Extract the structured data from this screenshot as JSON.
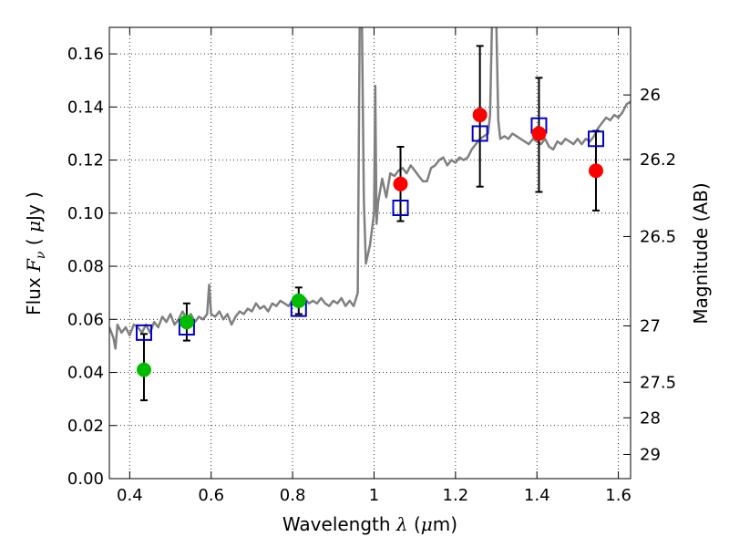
{
  "chart_data": {
    "type": "scatter",
    "title": "",
    "xlabel": "Wavelength  λ (μm)",
    "ylabel": "Flux  F_ν  ( μJy )",
    "ylabel_right": "Magnitude (AB)",
    "xlim": [
      0.35,
      1.63
    ],
    "ylim": [
      0.0,
      0.17
    ],
    "grid": true,
    "x_ticks": [
      0.4,
      0.6,
      0.8,
      1.0,
      1.2,
      1.4,
      1.6
    ],
    "x_tick_labels": [
      "0.4",
      "0.6",
      "0.8",
      "1",
      "1.2",
      "1.4",
      "1.6"
    ],
    "y_ticks": [
      0.0,
      0.02,
      0.04,
      0.06,
      0.08,
      0.1,
      0.12,
      0.14,
      0.16
    ],
    "y_tick_labels": [
      "0.00",
      "0.02",
      "0.04",
      "0.06",
      "0.08",
      "0.10",
      "0.12",
      "0.14",
      "0.16"
    ],
    "mag_ticks": [
      26,
      26.2,
      26.5,
      27,
      27.5,
      28,
      29
    ],
    "mag_tick_labels": [
      "26",
      "26.2",
      "26.5",
      "27",
      "27.5",
      "28",
      "29"
    ],
    "series": [
      {
        "kind": "line",
        "color": "#808080",
        "points": [
          [
            0.35,
            0.057
          ],
          [
            0.36,
            0.053
          ],
          [
            0.365,
            0.049
          ],
          [
            0.37,
            0.058
          ],
          [
            0.38,
            0.055
          ],
          [
            0.39,
            0.057
          ],
          [
            0.4,
            0.054
          ],
          [
            0.41,
            0.058
          ],
          [
            0.42,
            0.057
          ],
          [
            0.43,
            0.055
          ],
          [
            0.44,
            0.058
          ],
          [
            0.45,
            0.055
          ],
          [
            0.46,
            0.059
          ],
          [
            0.47,
            0.057
          ],
          [
            0.48,
            0.061
          ],
          [
            0.49,
            0.059
          ],
          [
            0.5,
            0.062
          ],
          [
            0.51,
            0.058
          ],
          [
            0.52,
            0.06
          ],
          [
            0.53,
            0.063
          ],
          [
            0.54,
            0.06
          ],
          [
            0.55,
            0.062
          ],
          [
            0.56,
            0.059
          ],
          [
            0.57,
            0.061
          ],
          [
            0.58,
            0.06
          ],
          [
            0.59,
            0.062
          ],
          [
            0.595,
            0.073
          ],
          [
            0.6,
            0.062
          ],
          [
            0.61,
            0.061
          ],
          [
            0.62,
            0.063
          ],
          [
            0.63,
            0.06
          ],
          [
            0.64,
            0.062
          ],
          [
            0.65,
            0.058
          ],
          [
            0.66,
            0.061
          ],
          [
            0.67,
            0.063
          ],
          [
            0.68,
            0.062
          ],
          [
            0.69,
            0.064
          ],
          [
            0.7,
            0.063
          ],
          [
            0.71,
            0.066
          ],
          [
            0.72,
            0.064
          ],
          [
            0.73,
            0.065
          ],
          [
            0.74,
            0.063
          ],
          [
            0.75,
            0.066
          ],
          [
            0.76,
            0.065
          ],
          [
            0.77,
            0.067
          ],
          [
            0.78,
            0.066
          ],
          [
            0.79,
            0.065
          ],
          [
            0.8,
            0.067
          ],
          [
            0.81,
            0.066
          ],
          [
            0.82,
            0.068
          ],
          [
            0.83,
            0.068
          ],
          [
            0.84,
            0.066
          ],
          [
            0.85,
            0.067
          ],
          [
            0.86,
            0.066
          ],
          [
            0.87,
            0.068
          ],
          [
            0.88,
            0.066
          ],
          [
            0.89,
            0.065
          ],
          [
            0.9,
            0.067
          ],
          [
            0.91,
            0.066
          ],
          [
            0.92,
            0.068
          ],
          [
            0.93,
            0.065
          ],
          [
            0.94,
            0.067
          ],
          [
            0.95,
            0.065
          ],
          [
            0.96,
            0.07
          ],
          [
            0.965,
            0.175
          ],
          [
            0.97,
            0.175
          ],
          [
            0.975,
            0.105
          ],
          [
            0.98,
            0.081
          ],
          [
            0.99,
            0.088
          ],
          [
            1.0,
            0.1
          ],
          [
            1.003,
            0.148
          ],
          [
            1.006,
            0.096
          ],
          [
            1.01,
            0.104
          ],
          [
            1.02,
            0.113
          ],
          [
            1.03,
            0.106
          ],
          [
            1.04,
            0.115
          ],
          [
            1.05,
            0.114
          ],
          [
            1.06,
            0.116
          ],
          [
            1.07,
            0.117
          ],
          [
            1.08,
            0.115
          ],
          [
            1.09,
            0.118
          ],
          [
            1.1,
            0.116
          ],
          [
            1.11,
            0.114
          ],
          [
            1.12,
            0.112
          ],
          [
            1.13,
            0.112
          ],
          [
            1.14,
            0.117
          ],
          [
            1.15,
            0.118
          ],
          [
            1.16,
            0.12
          ],
          [
            1.17,
            0.121
          ],
          [
            1.18,
            0.118
          ],
          [
            1.19,
            0.12
          ],
          [
            1.2,
            0.119
          ],
          [
            1.21,
            0.121
          ],
          [
            1.22,
            0.12
          ],
          [
            1.23,
            0.121
          ],
          [
            1.24,
            0.124
          ],
          [
            1.25,
            0.126
          ],
          [
            1.26,
            0.128
          ],
          [
            1.27,
            0.129
          ],
          [
            1.28,
            0.13
          ],
          [
            1.285,
            0.137
          ],
          [
            1.29,
            0.175
          ],
          [
            1.3,
            0.175
          ],
          [
            1.305,
            0.135
          ],
          [
            1.31,
            0.128
          ],
          [
            1.32,
            0.129
          ],
          [
            1.33,
            0.128
          ],
          [
            1.34,
            0.13
          ],
          [
            1.35,
            0.129
          ],
          [
            1.36,
            0.128
          ],
          [
            1.37,
            0.127
          ],
          [
            1.38,
            0.126
          ],
          [
            1.39,
            0.128
          ],
          [
            1.4,
            0.127
          ],
          [
            1.41,
            0.126
          ],
          [
            1.42,
            0.128
          ],
          [
            1.43,
            0.125
          ],
          [
            1.44,
            0.124
          ],
          [
            1.45,
            0.127
          ],
          [
            1.46,
            0.126
          ],
          [
            1.47,
            0.128
          ],
          [
            1.48,
            0.127
          ],
          [
            1.49,
            0.126
          ],
          [
            1.5,
            0.128
          ],
          [
            1.51,
            0.126
          ],
          [
            1.52,
            0.128
          ],
          [
            1.53,
            0.127
          ],
          [
            1.54,
            0.129
          ],
          [
            1.55,
            0.132
          ],
          [
            1.56,
            0.134
          ],
          [
            1.57,
            0.136
          ],
          [
            1.58,
            0.135
          ],
          [
            1.59,
            0.137
          ],
          [
            1.6,
            0.136
          ],
          [
            1.61,
            0.138
          ],
          [
            1.62,
            0.141
          ],
          [
            1.63,
            0.142
          ]
        ]
      },
      {
        "kind": "points",
        "color": "#00bb00",
        "points": [
          {
            "x": 0.435,
            "y": 0.041,
            "yerr": [
              0.0295,
              0.0545
            ]
          },
          {
            "x": 0.54,
            "y": 0.059,
            "yerr": [
              0.052,
              0.066
            ]
          },
          {
            "x": 0.815,
            "y": 0.067,
            "yerr": [
              0.062,
              0.072
            ]
          }
        ]
      },
      {
        "kind": "points",
        "color": "#ff0000",
        "points": [
          {
            "x": 1.065,
            "y": 0.111,
            "yerr": [
              0.097,
              0.125
            ]
          },
          {
            "x": 1.26,
            "y": 0.137,
            "yerr": [
              0.11,
              0.163
            ]
          },
          {
            "x": 1.405,
            "y": 0.13,
            "yerr": [
              0.108,
              0.151
            ]
          },
          {
            "x": 1.545,
            "y": 0.116,
            "yerr": [
              0.101,
              0.131
            ]
          }
        ]
      },
      {
        "kind": "open-squares",
        "color": "#0000cc",
        "points": [
          {
            "x": 0.435,
            "y": 0.055
          },
          {
            "x": 0.54,
            "y": 0.057
          },
          {
            "x": 0.815,
            "y": 0.064
          },
          {
            "x": 1.065,
            "y": 0.102
          },
          {
            "x": 1.26,
            "y": 0.13
          },
          {
            "x": 1.405,
            "y": 0.133
          },
          {
            "x": 1.545,
            "y": 0.128
          }
        ]
      }
    ]
  }
}
